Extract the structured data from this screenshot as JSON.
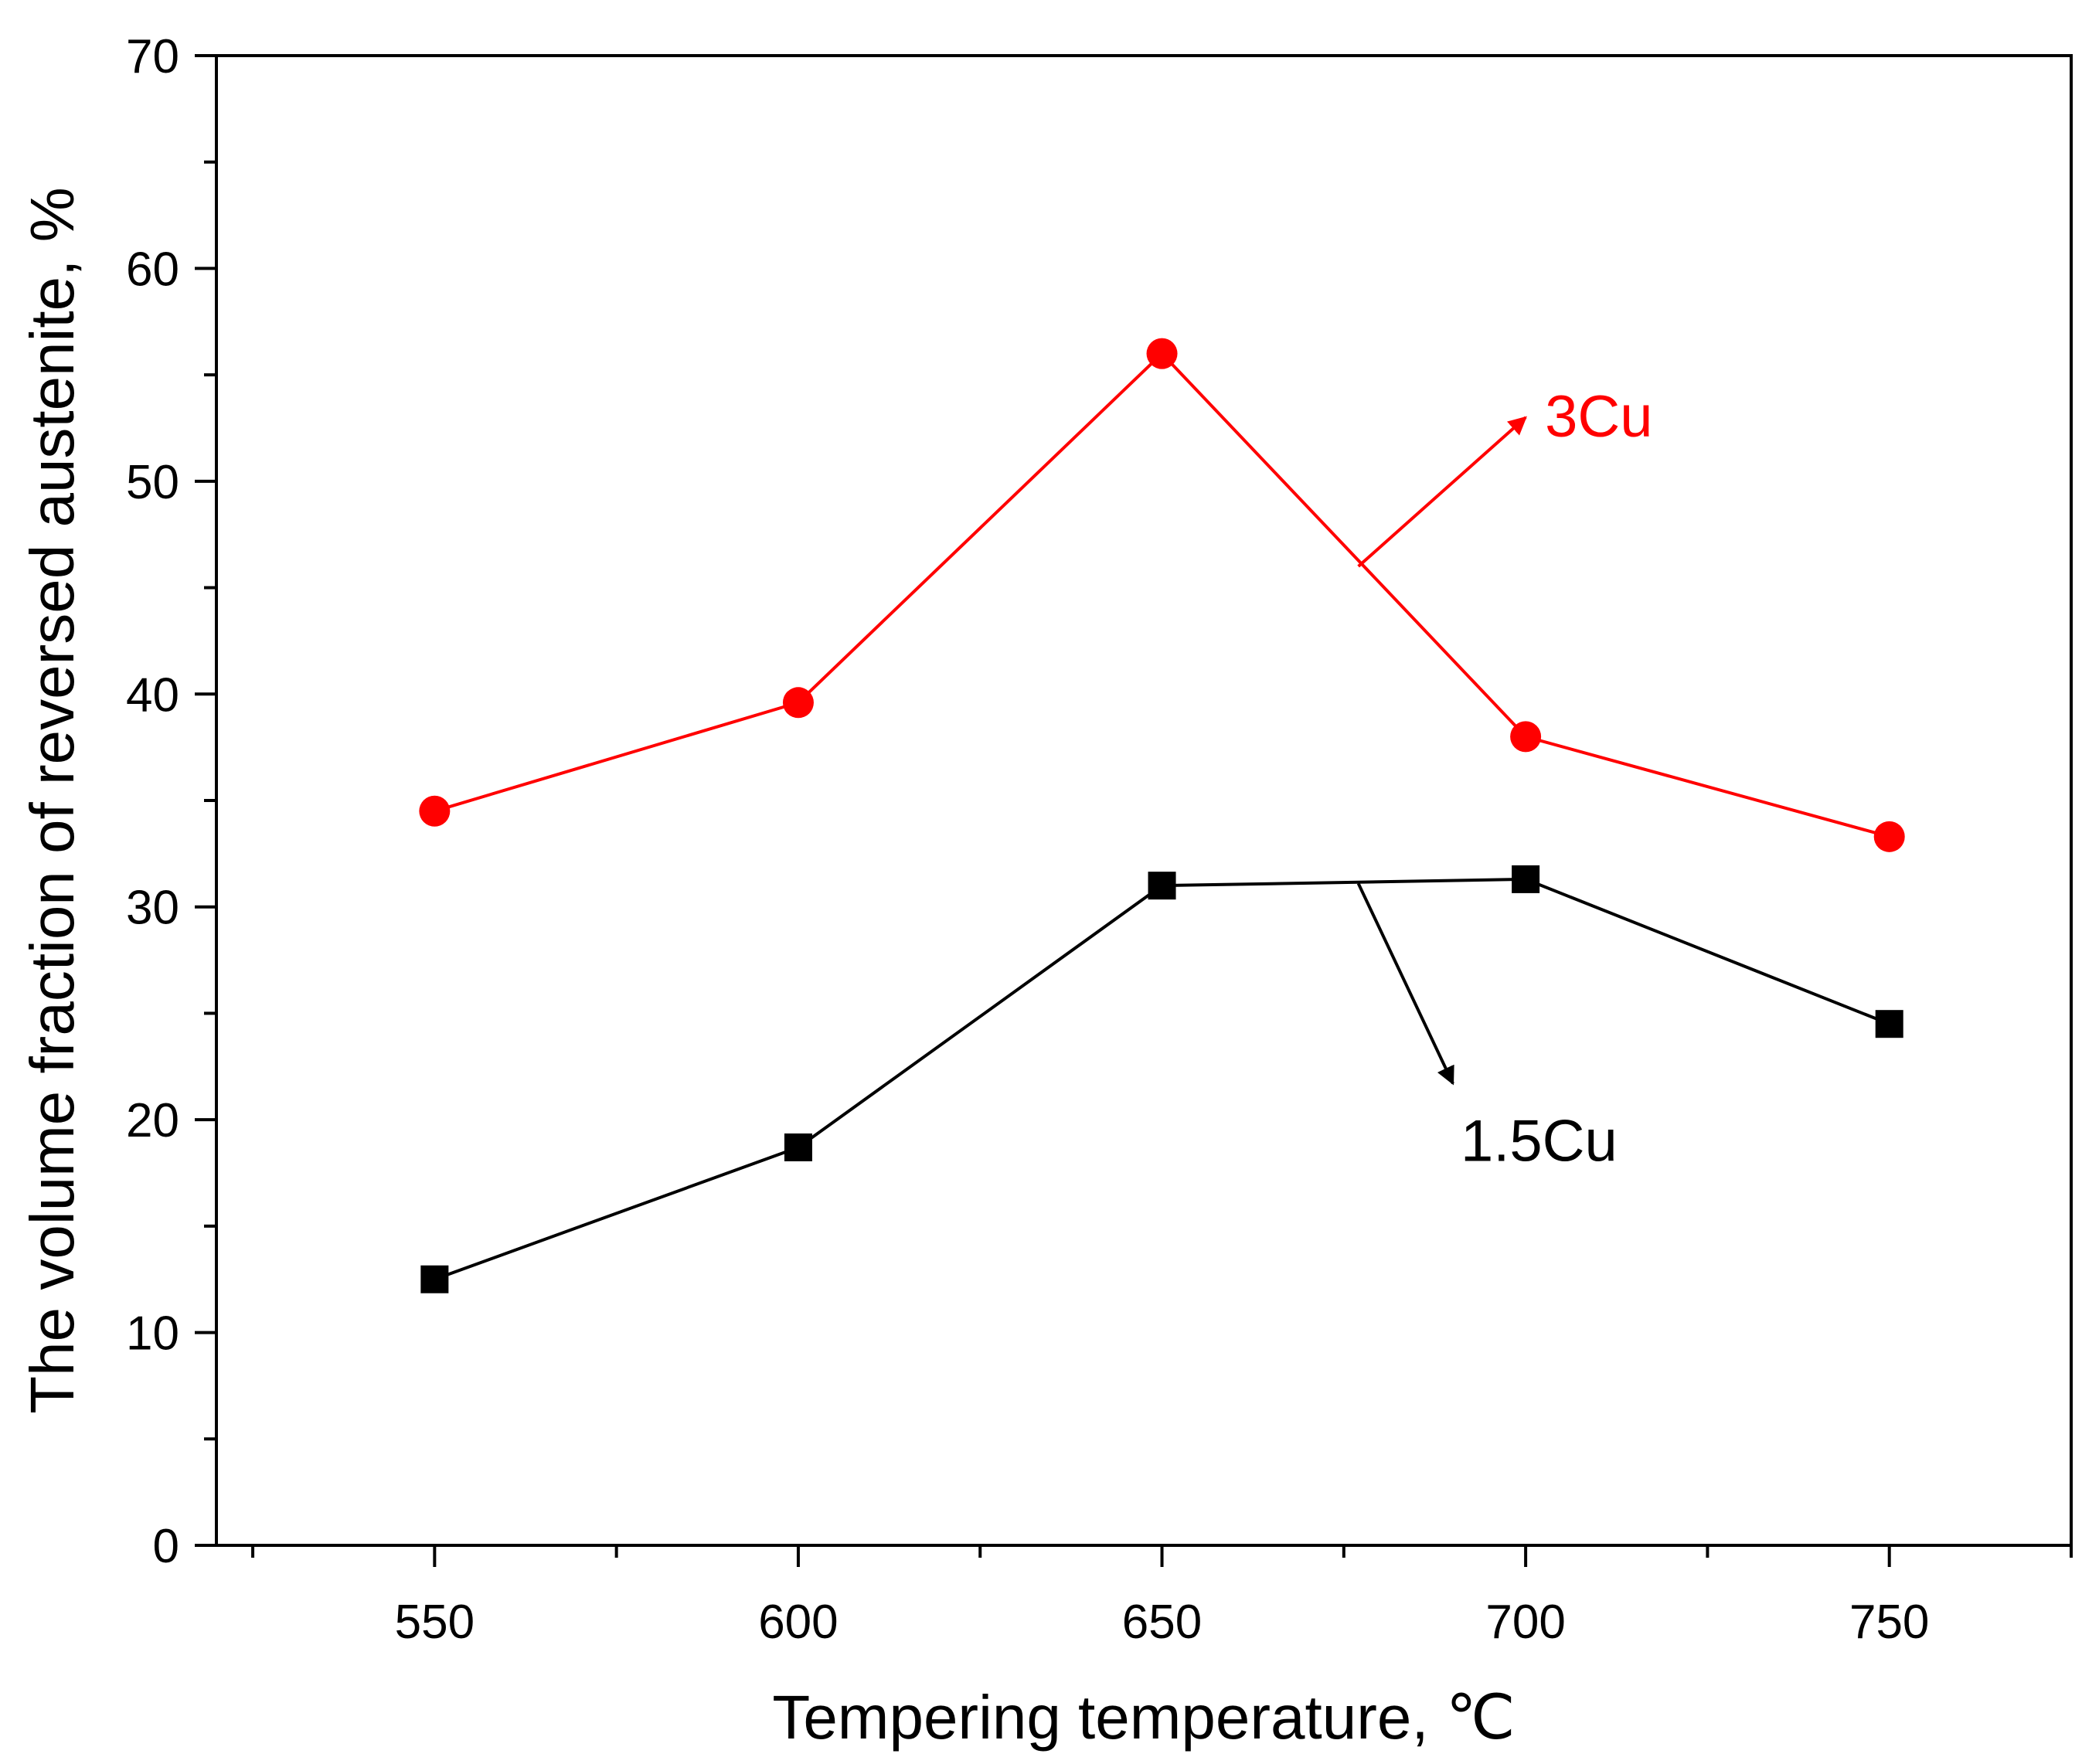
{
  "chart_data": {
    "type": "line",
    "title": "",
    "xlabel": "Tempering temperature, ℃",
    "ylabel": "The volume fraction of reversed austenite, %",
    "xlim": [
      520,
      775
    ],
    "ylim": [
      0,
      70
    ],
    "x_ticks": [
      550,
      600,
      650,
      700,
      750
    ],
    "y_ticks": [
      0,
      10,
      20,
      30,
      40,
      50,
      60,
      70
    ],
    "x_tick_labels": [
      "550",
      "600",
      "650",
      "700",
      "750"
    ],
    "y_tick_labels": [
      "0",
      "10",
      "20",
      "30",
      "40",
      "50",
      "60",
      "70"
    ],
    "x": [
      550,
      600,
      650,
      700,
      750
    ],
    "series": [
      {
        "name": "3Cu",
        "color": "#ff0000",
        "marker": "circle",
        "values": [
          34.5,
          39.6,
          56.0,
          38.0,
          33.3
        ],
        "annotation": {
          "text": "3Cu",
          "arrow_from": [
            677,
            46
          ],
          "arrow_to": [
            700,
            53
          ]
        }
      },
      {
        "name": "1.5Cu",
        "color": "#000000",
        "marker": "square",
        "values": [
          12.5,
          18.7,
          31.0,
          31.3,
          24.5
        ],
        "annotation": {
          "text": "1.5Cu",
          "arrow_from": [
            677,
            31.1
          ],
          "arrow_to": [
            690,
            21.7
          ]
        }
      }
    ],
    "grid": false,
    "legend": "none"
  }
}
